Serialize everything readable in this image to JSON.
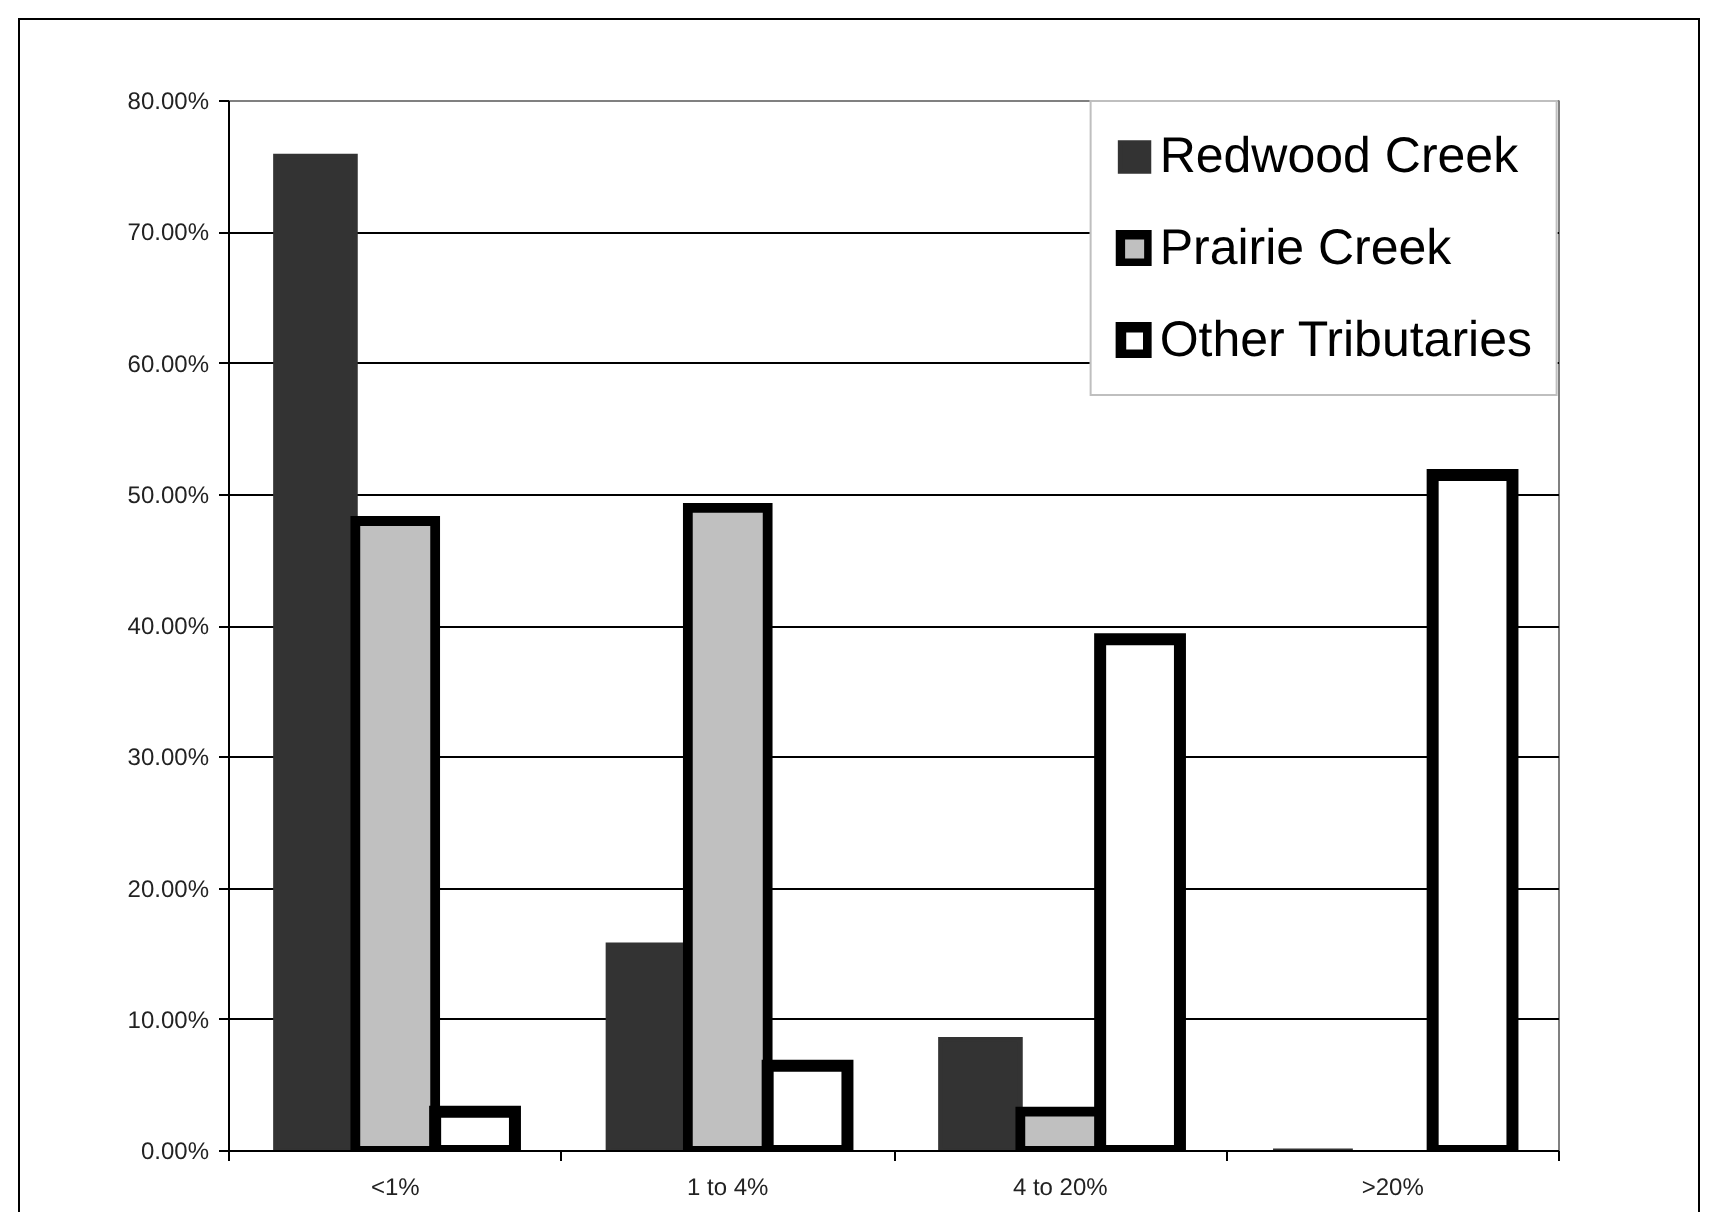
{
  "chart_data": {
    "type": "bar",
    "categories": [
      "<1%",
      "1 to 4%",
      "4 to 20%",
      ">20%"
    ],
    "series": [
      {
        "name": "Redwood Creek",
        "color": "#333333",
        "values": [
          75.8,
          15.7,
          8.5,
          0
        ]
      },
      {
        "name": "Prairie Creek",
        "color": "#c0c0c0",
        "values": [
          48,
          49,
          3,
          null
        ]
      },
      {
        "name": "Other Tributaries",
        "color": "#ffffff",
        "values": [
          3,
          6.5,
          39,
          51.5
        ]
      }
    ],
    "ylim": [
      0,
      80
    ],
    "yticks": [
      {
        "value": 0,
        "label": "0.00%"
      },
      {
        "value": 10,
        "label": "10.00%"
      },
      {
        "value": 20,
        "label": "20.00%"
      },
      {
        "value": 30,
        "label": "30.00%"
      },
      {
        "value": 40,
        "label": "40.00%"
      },
      {
        "value": 50,
        "label": "50.00%"
      },
      {
        "value": 60,
        "label": "60.00%"
      },
      {
        "value": 70,
        "label": "70.00%"
      },
      {
        "value": 80,
        "label": "80.00%"
      }
    ],
    "grid": "y",
    "legend": "top right"
  }
}
